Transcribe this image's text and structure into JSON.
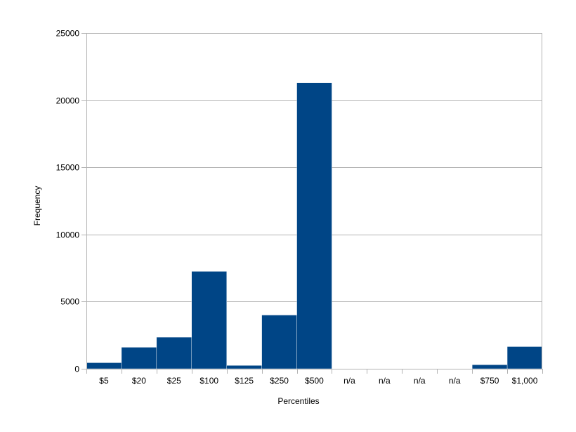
{
  "chart_data": {
    "type": "bar",
    "title": "",
    "xlabel": "Percentiles",
    "ylabel": "Frequency",
    "categories": [
      "$5",
      "$20",
      "$25",
      "$100",
      "$125",
      "$250",
      "$500",
      "n/a",
      "n/a",
      "n/a",
      "n/a",
      "$750",
      "$1,000"
    ],
    "values": [
      450,
      1600,
      2350,
      7250,
      250,
      4000,
      21300,
      0,
      0,
      0,
      0,
      300,
      1650
    ],
    "ylim": [
      0,
      25000
    ],
    "yticks": [
      0,
      5000,
      10000,
      15000,
      20000,
      25000
    ],
    "grid": true,
    "legend": "none",
    "bar_color": "#004586",
    "grid_color": "#b3b3b3"
  }
}
